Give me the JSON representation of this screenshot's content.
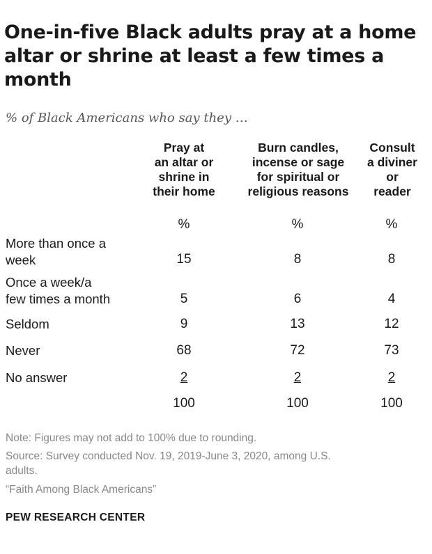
{
  "title": "One-in-five Black adults pray at a home altar or shrine at least a few times a month",
  "subtitle": "% of Black Americans who say they …",
  "chart_data": {
    "type": "table",
    "columns": [
      "Pray at\nan altar or\nshrine in\ntheir home",
      "Burn candles,\nincense or sage\nfor spiritual or\nreligious reasons",
      "Consult\na diviner\nor\nreader"
    ],
    "unit_row": [
      "%",
      "%",
      "%"
    ],
    "rows": [
      {
        "label": "More than once a\nweek",
        "values": [
          "15",
          "8",
          "8"
        ]
      },
      {
        "label": "Once a week/a\nfew times a month",
        "values": [
          "5",
          "6",
          "4"
        ]
      },
      {
        "label": "Seldom",
        "values": [
          "9",
          "13",
          "12"
        ]
      },
      {
        "label": "Never",
        "values": [
          "68",
          "72",
          "73"
        ]
      },
      {
        "label": "No answer",
        "values": [
          "2",
          "2",
          "2"
        ]
      },
      {
        "label": "",
        "values": [
          "100",
          "100",
          "100"
        ]
      }
    ]
  },
  "notes": {
    "note": "Note: Figures may not add to 100% due to rounding.",
    "source": "Source: Survey conducted Nov. 19, 2019-June 3, 2020, among U.S.\nadults.",
    "report": "“Faith Among Black Americans”"
  },
  "brand": "PEW RESEARCH CENTER"
}
